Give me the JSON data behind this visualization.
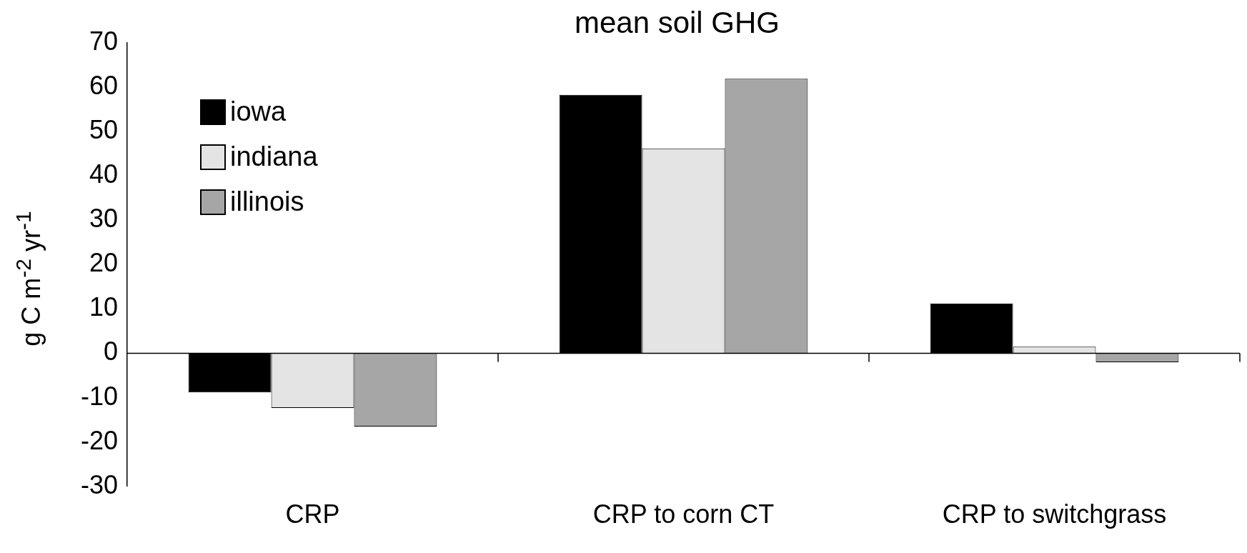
{
  "chart_data": {
    "type": "bar",
    "title": "mean  soil GHG",
    "ylabel": "g C m$^{-2}$ yr$^{-1}$",
    "categories": [
      "CRP",
      "CRP to corn CT",
      "CRP to switchgrass"
    ],
    "series": [
      {
        "name": "iowa",
        "color": "#000000",
        "values": [
          -8.8,
          58.3,
          11.2
        ]
      },
      {
        "name": "indiana",
        "color": "#e4e4e4",
        "values": [
          -12.3,
          46.2,
          1.5
        ]
      },
      {
        "name": "illinois",
        "color": "#a6a6a6",
        "values": [
          -16.5,
          61.9,
          -2
        ]
      }
    ],
    "ylim": [
      -30,
      70
    ],
    "yticks": [
      -30,
      -20,
      -10,
      0,
      10,
      20,
      30,
      40,
      50,
      60,
      70
    ],
    "grid": false,
    "ref_lines": [
      {
        "axis": "y",
        "value": 0,
        "color": "#000000"
      }
    ],
    "legend": "top left"
  }
}
